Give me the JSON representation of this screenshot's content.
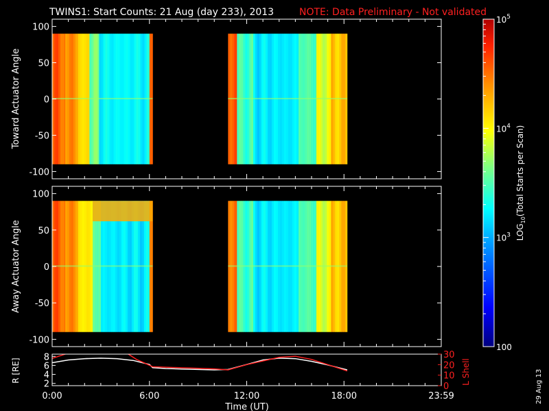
{
  "title": {
    "main": "TWINS1: Start Counts: 21 Aug (day 233), 2013",
    "note": "NOTE: Data Preliminary - Not validated"
  },
  "side_stamp": "29 Aug 13",
  "colors": {
    "background": "#000000",
    "axes": "#ffffff",
    "note_red": "#ff2020",
    "r_line": "#ffffff",
    "lshell_line": "#ff2020"
  },
  "chart_data": [
    {
      "type": "heatmap",
      "name": "toward",
      "ylabel": "Toward Actuator Angle",
      "ylim": [
        -110,
        110
      ],
      "yticks": [
        100,
        50,
        0,
        -50,
        -100
      ],
      "xlim": [
        0,
        24
      ],
      "data_intervals_hours": [
        [
          0,
          6.2
        ],
        [
          10.85,
          18.2
        ]
      ],
      "angle_range": [
        -90,
        90
      ],
      "profile_log10_counts": [
        {
          "from": 0.0,
          "to": 0.8,
          "value": 4.55
        },
        {
          "from": 0.8,
          "to": 1.6,
          "value": 4.4
        },
        {
          "from": 1.6,
          "to": 2.3,
          "value": 4.1
        },
        {
          "from": 2.3,
          "to": 2.9,
          "value": 3.6
        },
        {
          "from": 2.9,
          "to": 6.0,
          "value": 3.25
        },
        {
          "from": 6.0,
          "to": 6.2,
          "value": 4.6
        },
        {
          "from": 10.85,
          "to": 11.4,
          "value": 4.6
        },
        {
          "from": 11.4,
          "to": 12.4,
          "value": 3.45
        },
        {
          "from": 12.4,
          "to": 15.2,
          "value": 3.2
        },
        {
          "from": 15.2,
          "to": 16.3,
          "value": 3.5
        },
        {
          "from": 16.3,
          "to": 17.2,
          "value": 3.9
        },
        {
          "from": 17.2,
          "to": 18.2,
          "value": 4.2
        }
      ]
    },
    {
      "type": "heatmap",
      "name": "away",
      "ylabel": "Away Actuator Angle",
      "ylim": [
        -110,
        110
      ],
      "yticks": [
        100,
        50,
        0,
        -50,
        -100
      ],
      "xlim": [
        0,
        24
      ],
      "data_intervals_hours": [
        [
          0,
          6.2
        ],
        [
          10.85,
          18.2
        ]
      ],
      "angle_range": [
        -90,
        90
      ],
      "profile_log10_counts": [
        {
          "from": 0.0,
          "to": 0.8,
          "value": 4.55
        },
        {
          "from": 0.8,
          "to": 1.6,
          "value": 4.4
        },
        {
          "from": 1.6,
          "to": 2.5,
          "value": 4.05
        },
        {
          "from": 2.5,
          "to": 3.0,
          "value": 3.55
        },
        {
          "from": 3.0,
          "to": 6.0,
          "value": 3.2
        },
        {
          "from": 6.0,
          "to": 6.2,
          "value": 4.5
        },
        {
          "from": 10.85,
          "to": 11.4,
          "value": 4.5
        },
        {
          "from": 11.4,
          "to": 12.4,
          "value": 3.45
        },
        {
          "from": 12.4,
          "to": 15.2,
          "value": 3.2
        },
        {
          "from": 15.2,
          "to": 16.3,
          "value": 3.5
        },
        {
          "from": 16.3,
          "to": 17.2,
          "value": 3.9
        },
        {
          "from": 17.2,
          "to": 18.2,
          "value": 4.2
        }
      ],
      "high_angle_band": {
        "angle_from": 62,
        "angle_to": 90,
        "hours_from": 2.5,
        "hours_to": 6.2,
        "value": 4.3
      }
    },
    {
      "type": "line",
      "name": "orbit",
      "xlabel": "Time (UT)",
      "xlim": [
        0,
        24
      ],
      "xticks": [
        "0:00",
        "6:00",
        "12:00",
        "18:00",
        "23:59"
      ],
      "xtick_hours": [
        0,
        6,
        12,
        18,
        24
      ],
      "ylabel_left": "R [RE]",
      "ylim_left": [
        1.5,
        8.5
      ],
      "yticks_left": [
        8,
        6,
        4,
        2
      ],
      "ylabel_right": "L Shell",
      "ylim_right": [
        0,
        30
      ],
      "yticks_right": [
        30,
        20,
        10,
        0
      ],
      "series": [
        {
          "name": "R [RE]",
          "axis": "left",
          "x": [
            0,
            1,
            2,
            3,
            4,
            5,
            6,
            6.2,
            7,
            8,
            9,
            10,
            10.85,
            12,
            13,
            14,
            15,
            16,
            17,
            18.2
          ],
          "y": [
            6.6,
            7.2,
            7.5,
            7.6,
            7.5,
            7.1,
            6.2,
            5.5,
            5.3,
            5.2,
            5.1,
            5.0,
            5.1,
            6.2,
            7.2,
            7.6,
            7.5,
            6.9,
            6.1,
            5.0
          ]
        },
        {
          "name": "L Shell",
          "axis": "right",
          "x": [
            0,
            1,
            4.6,
            5.2,
            6.2,
            8,
            10,
            10.85,
            12,
            14,
            15,
            16,
            17,
            18.2
          ],
          "y": [
            26,
            31,
            31,
            25,
            18,
            17,
            16,
            15,
            20,
            27,
            28,
            25,
            20,
            14
          ]
        }
      ]
    }
  ],
  "colorbar": {
    "label_prefix": "LOG",
    "label_sub": "10",
    "label_suffix": "(Total Starts per Scan)",
    "range_log10": [
      2,
      5
    ],
    "tick_labels": [
      {
        "log": 5,
        "base": "10",
        "exp": "5"
      },
      {
        "log": 4,
        "base": "10",
        "exp": "4"
      },
      {
        "log": 3,
        "base": "10",
        "exp": "3"
      },
      {
        "log": 2,
        "text": "100"
      }
    ]
  }
}
